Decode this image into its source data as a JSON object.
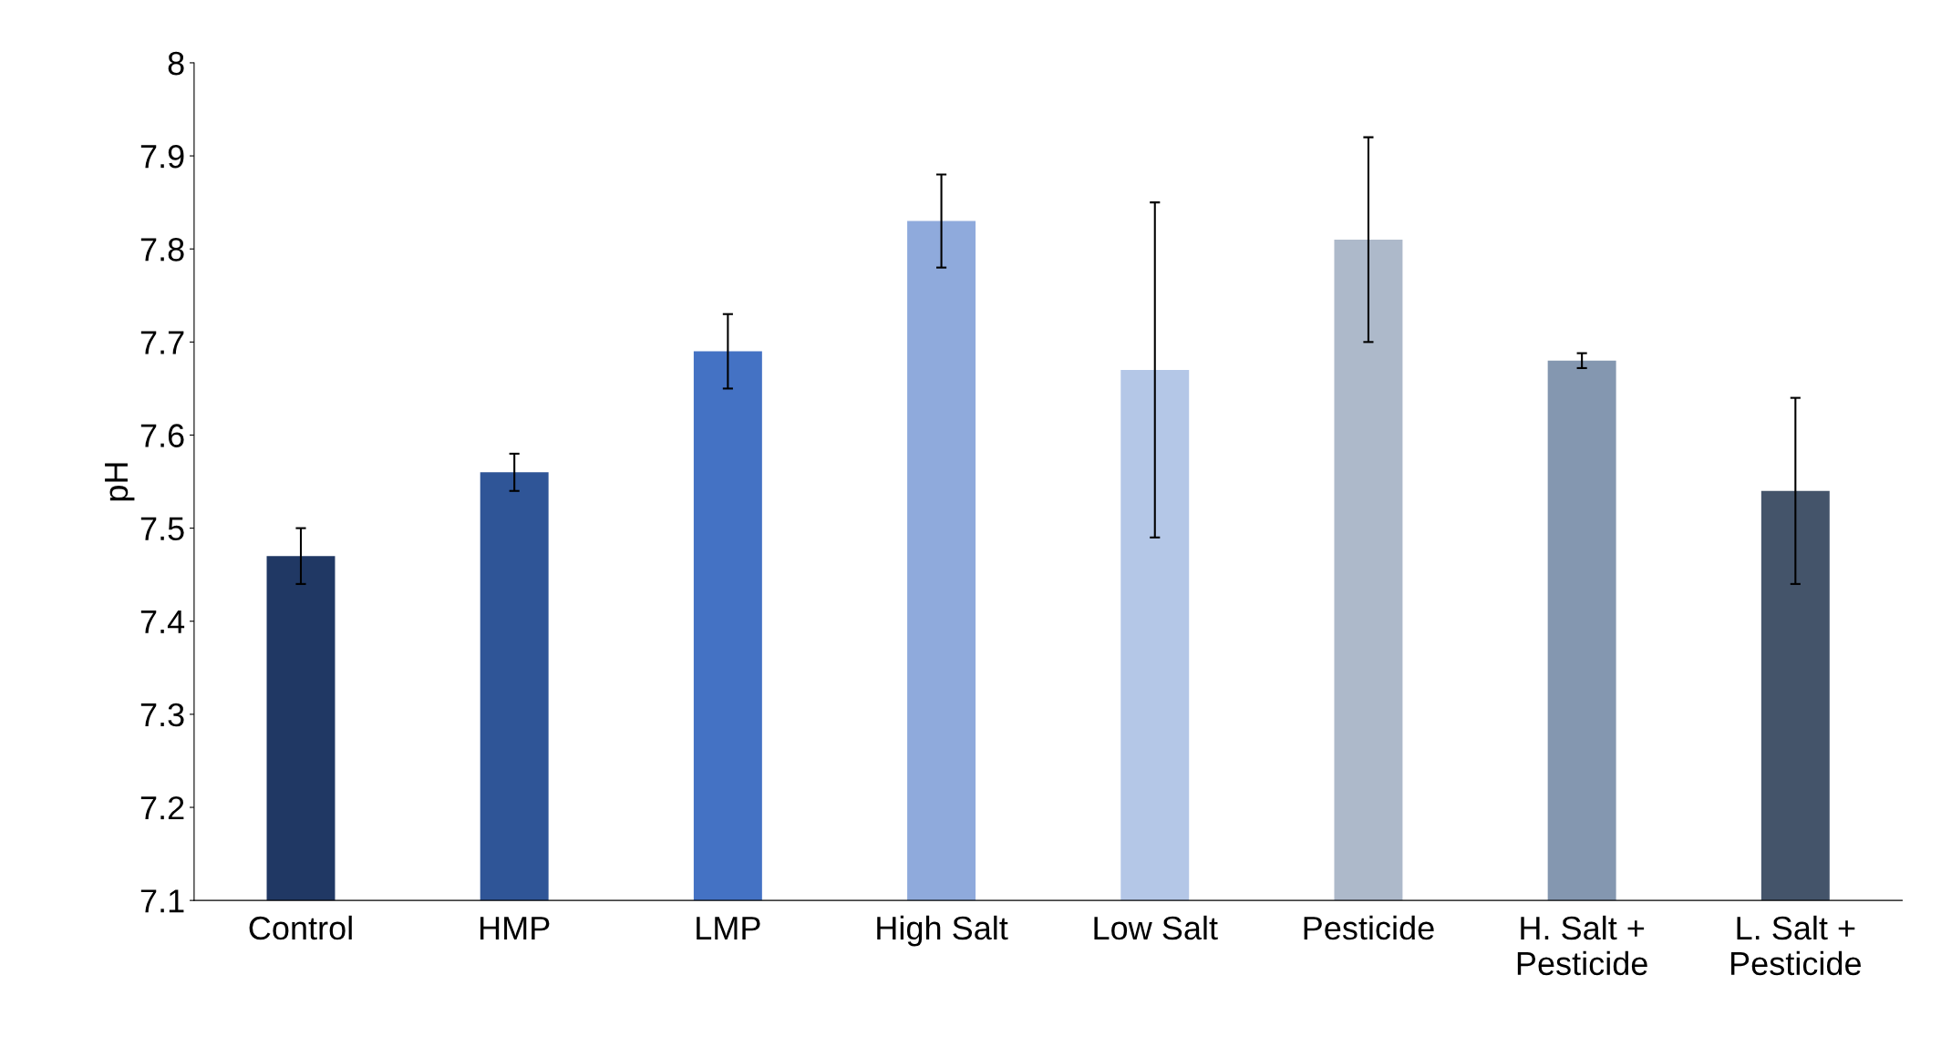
{
  "chart_data": {
    "type": "bar",
    "ylabel": "pH",
    "categories": [
      "Control",
      "HMP",
      "LMP",
      "High Salt",
      "Low Salt",
      "Pesticide",
      "H. Salt +\nPesticide",
      "L. Salt +\nPesticide"
    ],
    "values": [
      7.47,
      7.56,
      7.69,
      7.83,
      7.67,
      7.81,
      7.68,
      7.54
    ],
    "errors": [
      0.03,
      0.02,
      0.04,
      0.05,
      0.18,
      0.11,
      0.008,
      0.1
    ],
    "colors": [
      "#203864",
      "#2f5597",
      "#4472c4",
      "#8faadc",
      "#b4c7e7",
      "#adb9ca",
      "#8497b0",
      "#44546a"
    ],
    "ylim": [
      7.1,
      8
    ],
    "yticks": [
      7.1,
      7.2,
      7.3,
      7.4,
      7.5,
      7.6,
      7.7,
      7.8,
      7.9,
      8
    ],
    "grid": false
  }
}
